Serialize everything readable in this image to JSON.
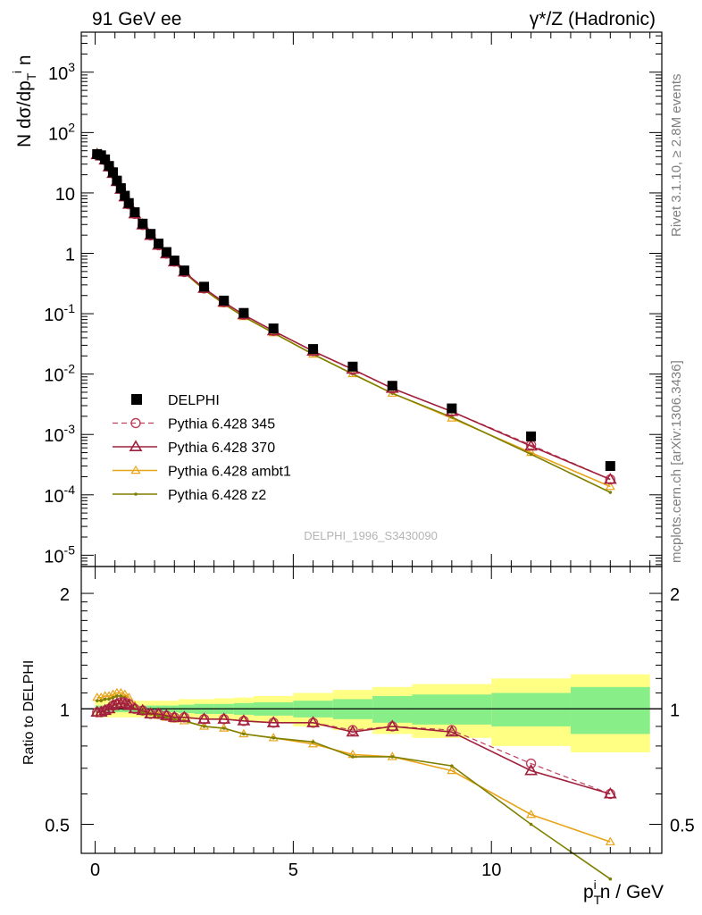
{
  "header": {
    "left": "91 GeV ee",
    "right_symbol": "γ*/Z",
    "right_text": "(Hadronic)"
  },
  "side": {
    "rivet": "Rivet 3.1.10, ≥ 2.8M events",
    "mcplots": "mcplots.cern.ch [arXiv:1306.3436]"
  },
  "watermark": "DELPHI_1996_S3430090",
  "chart_data": [
    {
      "type": "scatter",
      "title": "",
      "ylabel": "N dσ/dp_T^i n",
      "yscale": "log",
      "xlim": [
        -0.35,
        14.3
      ],
      "ylim": [
        6.5e-06,
        4600
      ],
      "y_tick_labels": [
        "10^-5",
        "10^-4",
        "10^-3",
        "10^-2",
        "10^-1",
        "1",
        "10",
        "10^2",
        "10^3"
      ],
      "legend_position": "lower-left",
      "x": [
        0.05,
        0.15,
        0.25,
        0.35,
        0.45,
        0.55,
        0.65,
        0.75,
        0.85,
        1.0,
        1.2,
        1.4,
        1.6,
        1.8,
        2.0,
        2.25,
        2.75,
        3.25,
        3.75,
        4.5,
        5.5,
        6.5,
        7.5,
        9.0,
        11.0,
        13.0
      ],
      "series": [
        {
          "name": "DELPHI",
          "color": "#000000",
          "marker": "square",
          "values": [
            44,
            42,
            36,
            28,
            22,
            16,
            12,
            9.0,
            6.8,
            4.8,
            3.1,
            2.1,
            1.45,
            1.05,
            0.76,
            0.52,
            0.28,
            0.165,
            0.103,
            0.057,
            0.026,
            0.0133,
            0.0064,
            0.0027,
            0.00093,
            0.0003
          ]
        },
        {
          "name": "Pythia 6.428 345",
          "color": "#c0415b",
          "marker": "circle",
          "dashed": true,
          "values": [
            43,
            41,
            35,
            27,
            21,
            15.5,
            11.6,
            8.7,
            6.5,
            4.5,
            2.95,
            1.98,
            1.36,
            0.99,
            0.73,
            0.49,
            0.262,
            0.155,
            0.096,
            0.052,
            0.024,
            0.0118,
            0.0058,
            0.0024,
            0.00067,
            0.00018
          ]
        },
        {
          "name": "Pythia 6.428 370",
          "color": "#a0203c",
          "marker": "triangle",
          "values": [
            43,
            41,
            35,
            27,
            21,
            15.4,
            11.5,
            8.6,
            6.5,
            4.5,
            2.95,
            1.98,
            1.36,
            0.98,
            0.72,
            0.49,
            0.262,
            0.155,
            0.096,
            0.052,
            0.024,
            0.012,
            0.0058,
            0.0024,
            0.00064,
            0.00018
          ]
        },
        {
          "name": "Pythia 6.428 ambt1",
          "color": "#e8a317",
          "marker": "triangle-small",
          "values": [
            47,
            45,
            39,
            30,
            24,
            17,
            13,
            9.7,
            7.2,
            4.9,
            3.1,
            2.05,
            1.4,
            0.99,
            0.72,
            0.48,
            0.25,
            0.145,
            0.089,
            0.048,
            0.0213,
            0.0101,
            0.0048,
            0.00186,
            0.0005,
            0.000137
          ]
        },
        {
          "name": "Pythia 6.428 z2",
          "color": "#7f7f00",
          "marker": "dot",
          "values": [
            46,
            44,
            38,
            29,
            23,
            16.8,
            12.6,
            9.5,
            7.0,
            4.8,
            3.05,
            2.0,
            1.38,
            0.98,
            0.71,
            0.48,
            0.25,
            0.146,
            0.089,
            0.048,
            0.0213,
            0.01,
            0.0048,
            0.00194,
            0.00047,
            0.00011
          ]
        }
      ]
    },
    {
      "type": "line",
      "ylabel": "Ratio to DELPHI",
      "xlabel": "p_T^i n / GeV",
      "xlim": [
        -0.35,
        14.3
      ],
      "ylim": [
        0.42,
        2.35
      ],
      "x_ticks": [
        0,
        5,
        10
      ],
      "y_ticks": [
        0.5,
        1,
        2
      ],
      "x": [
        0.05,
        0.15,
        0.25,
        0.35,
        0.45,
        0.55,
        0.65,
        0.75,
        0.85,
        1.0,
        1.2,
        1.4,
        1.6,
        1.8,
        2.0,
        2.25,
        2.75,
        3.25,
        3.75,
        4.5,
        5.5,
        6.5,
        7.5,
        9.0,
        11.0,
        13.0
      ],
      "bands": {
        "edges": [
          0,
          0.1,
          0.2,
          0.3,
          0.4,
          0.5,
          0.6,
          0.7,
          0.8,
          0.9,
          1.1,
          1.3,
          1.5,
          1.7,
          1.9,
          2.1,
          2.5,
          3.0,
          3.5,
          4.0,
          5.0,
          6.0,
          7.0,
          8.0,
          10.0,
          12.0,
          14.0
        ],
        "stat": [
          0.02,
          0.02,
          0.02,
          0.02,
          0.02,
          0.02,
          0.02,
          0.02,
          0.02,
          0.02,
          0.02,
          0.02,
          0.02,
          0.02,
          0.02,
          0.025,
          0.03,
          0.03,
          0.035,
          0.04,
          0.05,
          0.06,
          0.08,
          0.09,
          0.1,
          0.14
        ],
        "total": [
          0.05,
          0.05,
          0.05,
          0.05,
          0.05,
          0.05,
          0.05,
          0.05,
          0.05,
          0.05,
          0.05,
          0.05,
          0.05,
          0.05,
          0.05,
          0.06,
          0.06,
          0.065,
          0.07,
          0.08,
          0.1,
          0.12,
          0.14,
          0.16,
          0.2,
          0.23
        ]
      },
      "series": [
        {
          "name": "Pythia 6.428 345",
          "values": [
            0.98,
            0.98,
            0.99,
            1.0,
            1.02,
            1.03,
            1.04,
            1.04,
            1.03,
            1.0,
            0.99,
            0.97,
            0.97,
            0.96,
            0.95,
            0.95,
            0.94,
            0.94,
            0.93,
            0.92,
            0.92,
            0.88,
            0.9,
            0.88,
            0.72,
            0.6
          ]
        },
        {
          "name": "Pythia 6.428 370",
          "values": [
            0.98,
            0.98,
            0.99,
            1.0,
            1.02,
            1.03,
            1.03,
            1.03,
            1.02,
            1.0,
            0.99,
            0.97,
            0.97,
            0.96,
            0.95,
            0.95,
            0.94,
            0.94,
            0.93,
            0.92,
            0.92,
            0.87,
            0.9,
            0.87,
            0.69,
            0.6
          ]
        },
        {
          "name": "Pythia 6.428 ambt1",
          "values": [
            1.07,
            1.07,
            1.08,
            1.08,
            1.09,
            1.1,
            1.1,
            1.09,
            1.07,
            1.02,
            0.99,
            0.98,
            0.96,
            0.95,
            0.94,
            0.93,
            0.9,
            0.89,
            0.86,
            0.84,
            0.81,
            0.76,
            0.75,
            0.69,
            0.53,
            0.45
          ]
        },
        {
          "name": "Pythia 6.428 z2",
          "values": [
            1.05,
            1.05,
            1.06,
            1.06,
            1.07,
            1.08,
            1.08,
            1.07,
            1.05,
            1.0,
            0.98,
            0.97,
            0.96,
            0.95,
            0.94,
            0.93,
            0.9,
            0.89,
            0.86,
            0.84,
            0.82,
            0.75,
            0.75,
            0.71,
            0.5,
            0.36
          ]
        }
      ]
    }
  ]
}
